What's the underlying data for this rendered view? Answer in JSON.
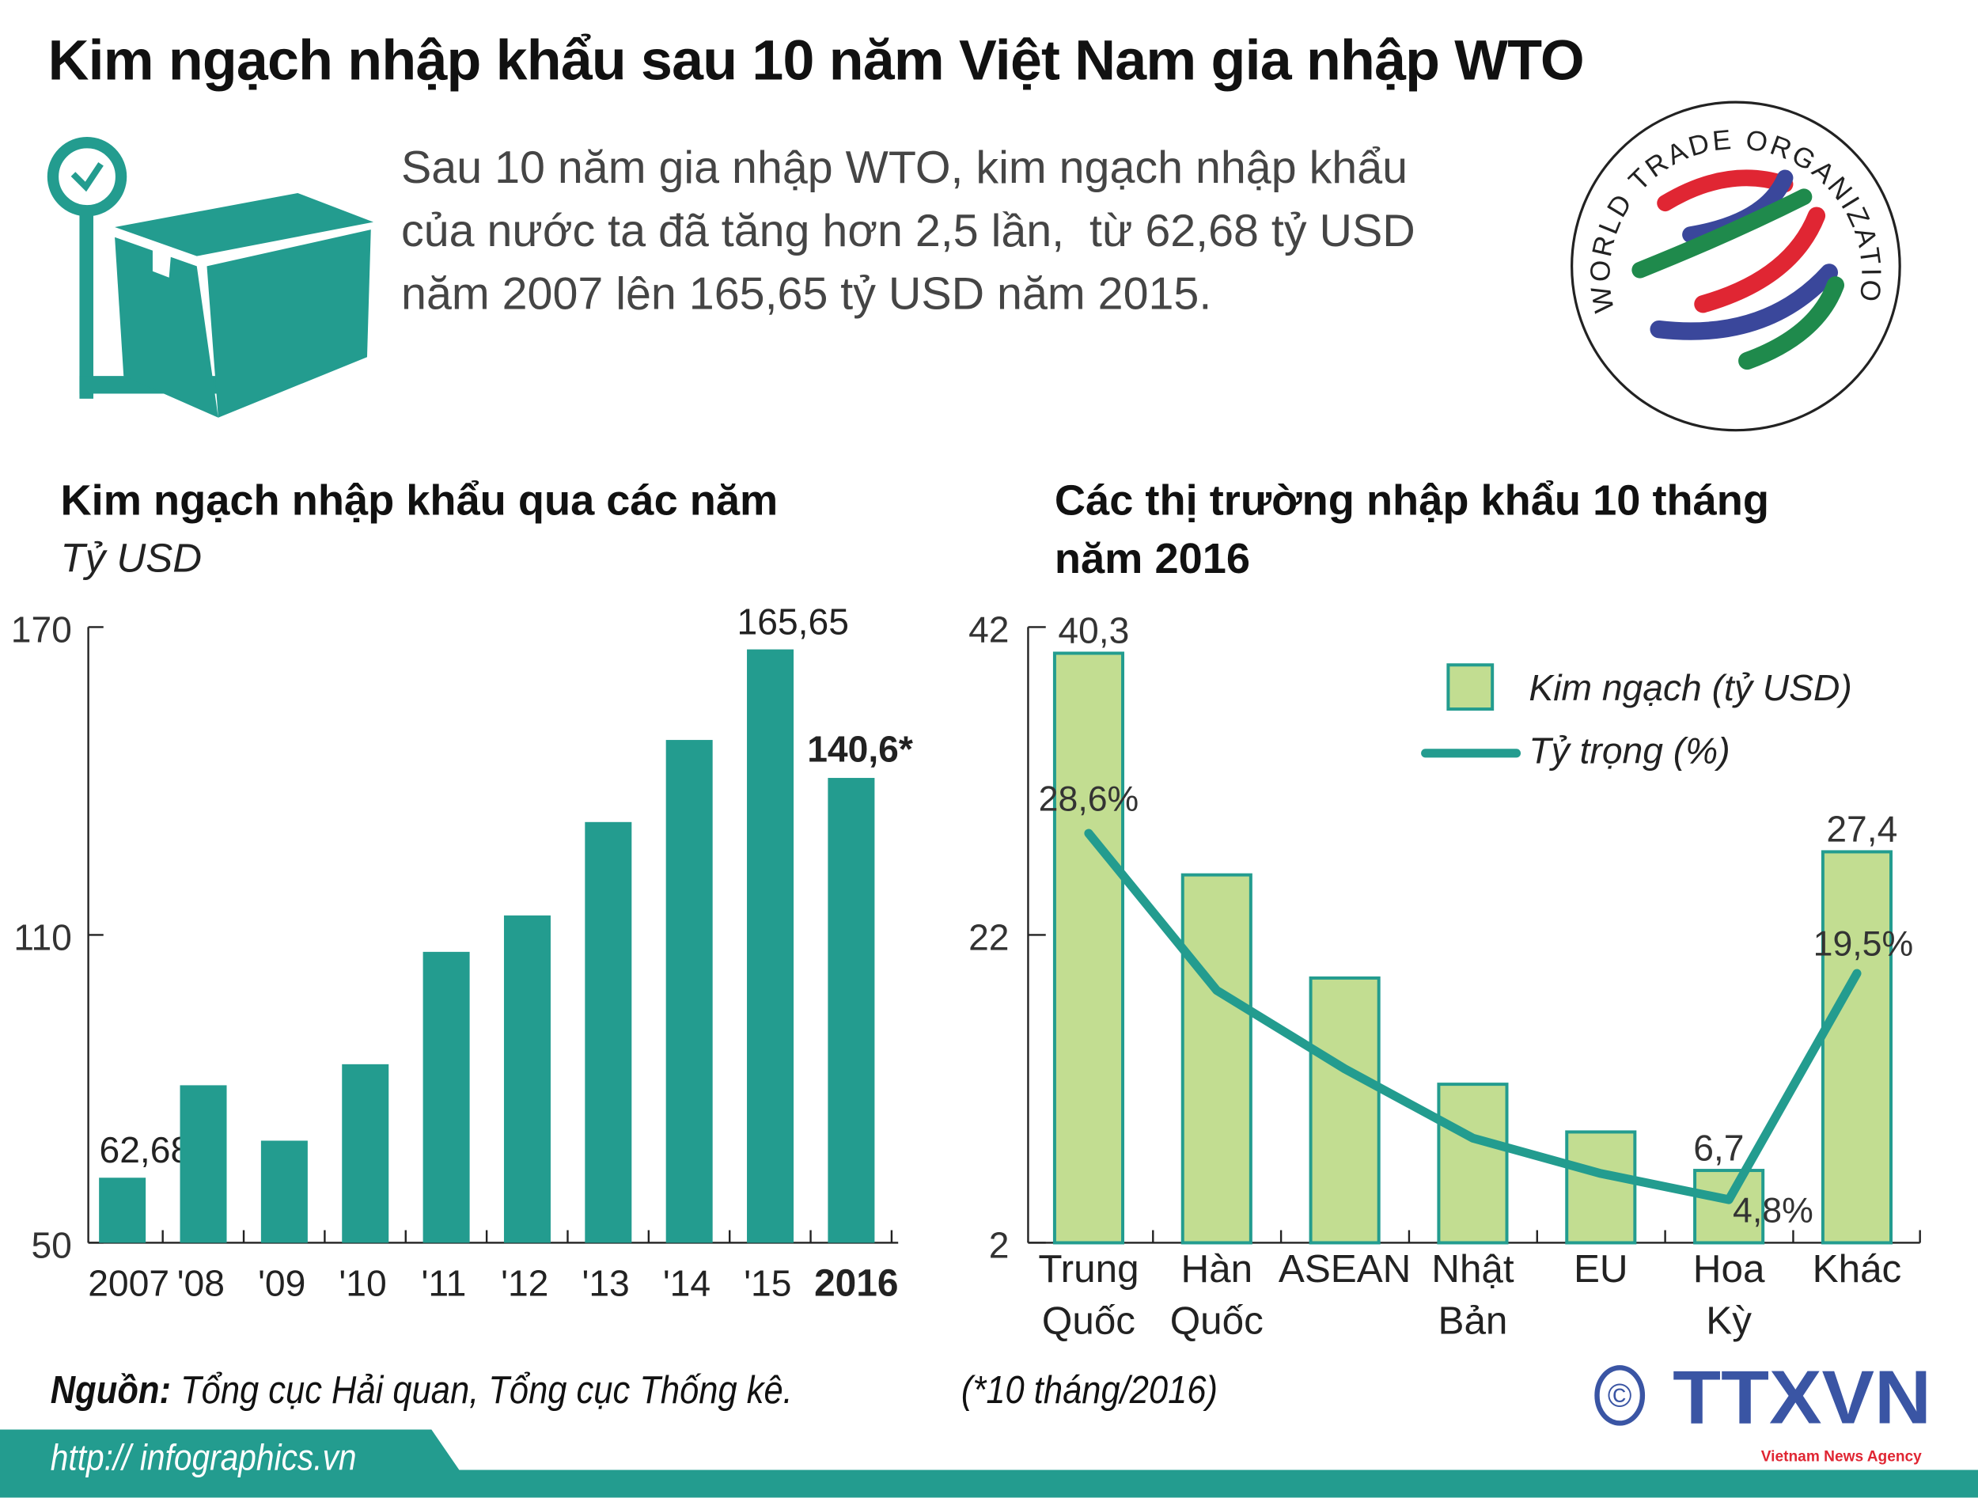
{
  "title": "Kim ngạch nhập khẩu sau 10 năm Việt Nam gia nhập WTO",
  "intro": {
    "lines": [
      "Sau 10 năm gia nhập WTO, kim ngạch nhập khẩu",
      "của nước ta đã tăng hơn 2,5 lần,  từ 62,68 tỷ USD",
      "năm 2007 lên 165,65 tỷ USD năm 2015."
    ]
  },
  "icons": {
    "box": "package-scale-clock-icon",
    "logo": "wto-logo"
  },
  "logo_text": {
    "wto_top": "WORLD TRADE ORGANIZATION",
    "agency": "TTXVN",
    "agency_sub": "Vietnam News Agency",
    "copyright": "©"
  },
  "colors": {
    "teal": "#239c8f",
    "bar_green": "#c2dd91",
    "red": "#e02633",
    "blue": "#3a479b",
    "green": "#1f8a4c"
  },
  "chart_data": [
    {
      "type": "bar",
      "title": "Kim ngạch nhập khẩu qua các năm",
      "ylabel": "Tỷ USD",
      "categories": [
        "2007",
        "'08",
        "'09",
        "'10",
        "'11",
        "'12",
        "'13",
        "'14",
        "'15",
        "2016"
      ],
      "values": [
        62.68,
        80.7,
        69.9,
        84.8,
        106.7,
        113.8,
        132.0,
        148.0,
        165.65,
        140.6
      ],
      "data_labels": {
        "0": "62,68",
        "8": "165,65",
        "9": "140,6*"
      },
      "bold_categories": [
        "2016"
      ],
      "yticks": [
        "50",
        "110",
        "170"
      ],
      "ylim": [
        50,
        170
      ],
      "color": "#239c8f"
    },
    {
      "type": "bar+line",
      "title": "Các thị trường nhập khẩu 10 tháng năm 2016",
      "categories": [
        [
          "Trung",
          "Quốc"
        ],
        [
          "Hàn",
          "Quốc"
        ],
        [
          "ASEAN"
        ],
        [
          "Nhật",
          "Bản"
        ],
        [
          "EU"
        ],
        [
          "Hoa",
          "Kỳ"
        ],
        [
          "Khác"
        ]
      ],
      "series": [
        {
          "name": "Kim ngạch (tỷ USD)",
          "type": "bar",
          "values": [
            40.3,
            25.9,
            19.2,
            12.3,
            9.2,
            6.7,
            27.4
          ],
          "labels": {
            "0": "40,3",
            "5": "6,7",
            "6": "27,4"
          }
        },
        {
          "name": "Tỷ trọng (%)",
          "type": "line",
          "values": [
            28.6,
            18.4,
            13.3,
            8.8,
            6.5,
            4.8,
            19.5
          ],
          "labels": {
            "0": "28,6%",
            "5": "4,8%",
            "6": "19,5%"
          }
        }
      ],
      "yticks": [
        "2",
        "22",
        "42"
      ],
      "ylim": [
        2,
        42
      ],
      "legend": "top-right"
    }
  ],
  "footer": {
    "source_label": "Nguồn:",
    "source_text": "Tổng cục Hải quan, Tổng cục Thống kê.",
    "note": "(*10 tháng/2016)",
    "url": "http:// infographics.vn"
  }
}
